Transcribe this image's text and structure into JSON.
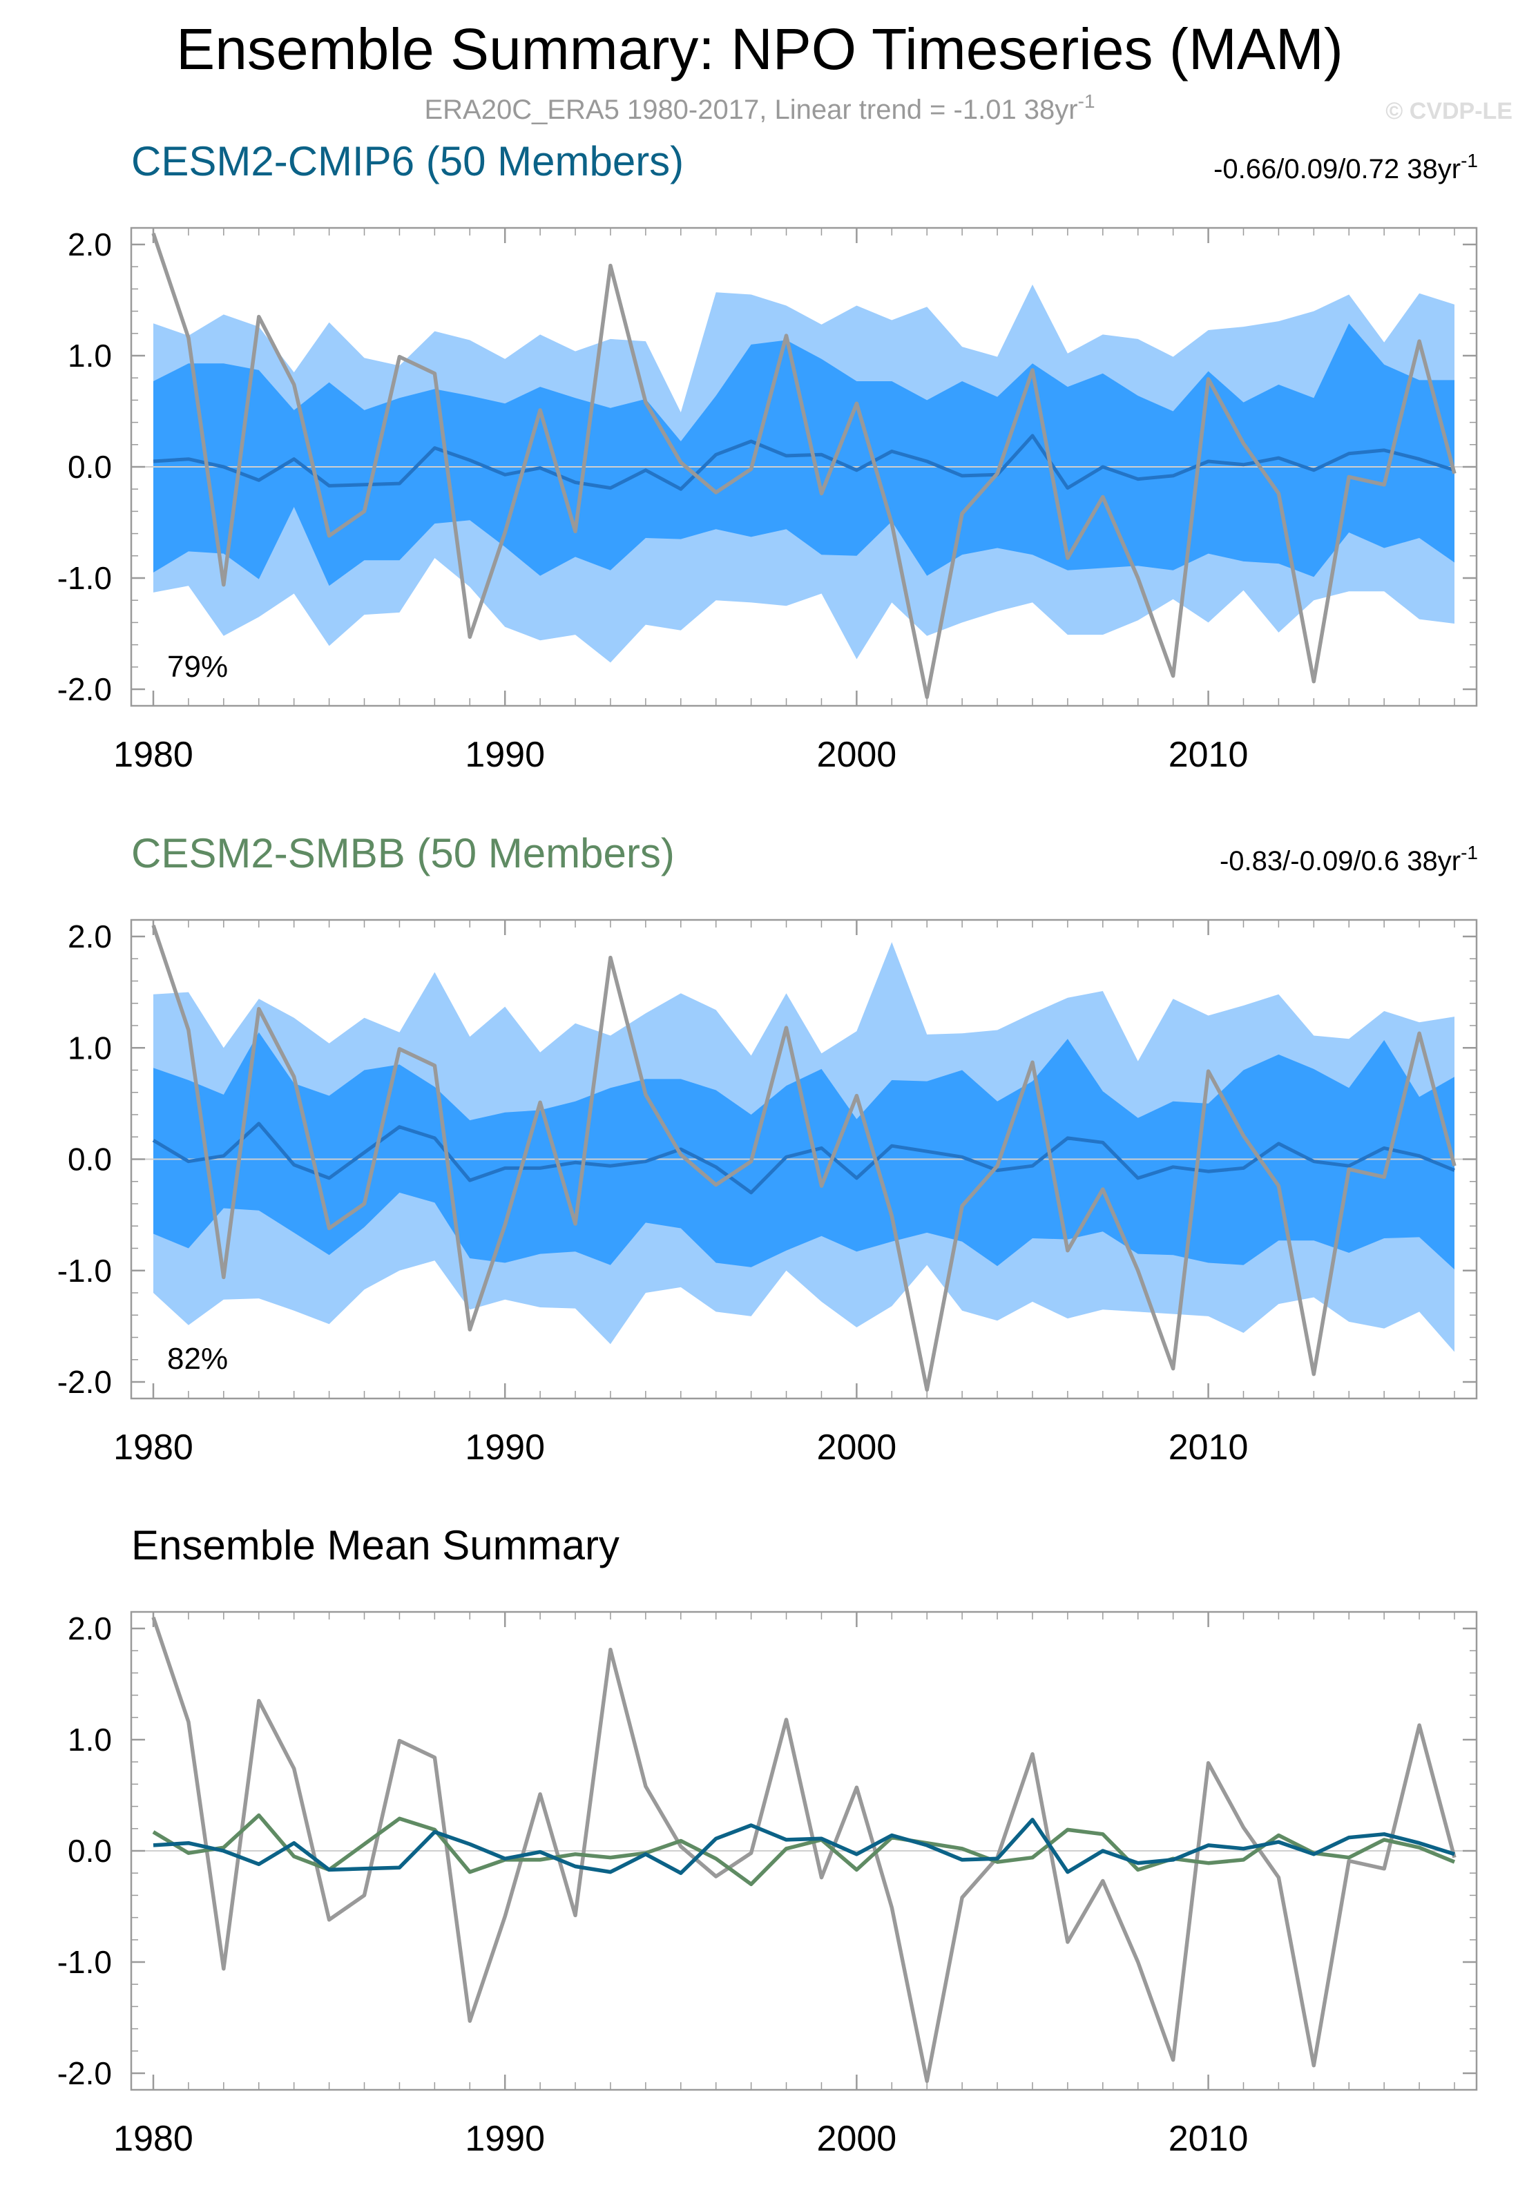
{
  "header": {
    "title": "Ensemble Summary: NPO Timeseries (MAM)",
    "subtitle": "ERA20C_ERA5 1980-2017, Linear trend = -1.01 38yr",
    "subtitle_sup": "-1",
    "watermark": "© CVDP-LE"
  },
  "colors": {
    "obs": "#999999",
    "cmip6": "#0b6287",
    "smbb": "#5f8b63",
    "band_outer": "#9dcdfd",
    "band_inner": "#379fff",
    "ens_mean_in_panel": "#2374c6"
  },
  "chart_data": [
    {
      "type": "area",
      "title": "CESM2-CMIP6 (50 Members)",
      "trend_label": "-0.66/0.09/0.72 38yr",
      "trend_sup": "-1",
      "percent_label": "79%",
      "xlim": [
        1980,
        2017
      ],
      "ylim": [
        -2.0,
        2.0
      ],
      "xticks": [
        "1980",
        "1990",
        "2000",
        "2010"
      ],
      "yticks": [
        "2.0",
        "1.0",
        "0.0",
        "-1.0",
        "-2.0"
      ],
      "x": [
        1980,
        1981,
        1982,
        1983,
        1984,
        1985,
        1986,
        1987,
        1988,
        1989,
        1990,
        1991,
        1992,
        1993,
        1994,
        1995,
        1996,
        1997,
        1998,
        1999,
        2000,
        2001,
        2002,
        2003,
        2004,
        2005,
        2006,
        2007,
        2008,
        2009,
        2010,
        2011,
        2012,
        2013,
        2014,
        2015,
        2016,
        2017
      ],
      "series": [
        {
          "name": "outer_max",
          "values": [
            1.29,
            1.18,
            1.37,
            1.26,
            0.85,
            1.3,
            0.98,
            0.91,
            1.22,
            1.14,
            0.97,
            1.19,
            1.04,
            1.15,
            1.13,
            0.49,
            1.57,
            1.55,
            1.45,
            1.28,
            1.45,
            1.32,
            1.44,
            1.08,
            0.99,
            1.64,
            1.02,
            1.19,
            1.15,
            0.99,
            1.23,
            1.26,
            1.31,
            1.4,
            1.55,
            1.12,
            1.56,
            1.46
          ]
        },
        {
          "name": "inner_max",
          "values": [
            0.77,
            0.93,
            0.93,
            0.87,
            0.51,
            0.76,
            0.51,
            0.62,
            0.7,
            0.64,
            0.57,
            0.72,
            0.62,
            0.53,
            0.61,
            0.23,
            0.64,
            1.1,
            1.14,
            0.97,
            0.77,
            0.77,
            0.6,
            0.77,
            0.63,
            0.93,
            0.72,
            0.84,
            0.64,
            0.5,
            0.86,
            0.58,
            0.74,
            0.62,
            1.29,
            0.92,
            0.78,
            0.78
          ]
        },
        {
          "name": "inner_min",
          "values": [
            -0.95,
            -0.76,
            -0.78,
            -1.01,
            -0.36,
            -1.07,
            -0.84,
            -0.84,
            -0.51,
            -0.48,
            -0.72,
            -0.98,
            -0.81,
            -0.93,
            -0.64,
            -0.65,
            -0.56,
            -0.63,
            -0.56,
            -0.79,
            -0.8,
            -0.49,
            -0.98,
            -0.79,
            -0.73,
            -0.79,
            -0.93,
            -0.91,
            -0.89,
            -0.93,
            -0.78,
            -0.85,
            -0.87,
            -0.99,
            -0.59,
            -0.73,
            -0.64,
            -0.86
          ]
        },
        {
          "name": "outer_min",
          "values": [
            -1.13,
            -1.07,
            -1.52,
            -1.35,
            -1.14,
            -1.61,
            -1.33,
            -1.31,
            -0.82,
            -1.08,
            -1.44,
            -1.56,
            -1.51,
            -1.76,
            -1.42,
            -1.47,
            -1.2,
            -1.22,
            -1.25,
            -1.14,
            -1.73,
            -1.22,
            -1.52,
            -1.4,
            -1.3,
            -1.22,
            -1.51,
            -1.51,
            -1.38,
            -1.19,
            -1.4,
            -1.11,
            -1.49,
            -1.2,
            -1.12,
            -1.12,
            -1.37,
            -1.41
          ]
        },
        {
          "name": "ensemble_mean",
          "values": [
            0.05,
            0.07,
            0.0,
            -0.12,
            0.07,
            -0.17,
            -0.16,
            -0.15,
            0.17,
            0.06,
            -0.07,
            -0.01,
            -0.14,
            -0.19,
            -0.03,
            -0.2,
            0.11,
            0.23,
            0.1,
            0.11,
            -0.03,
            0.14,
            0.05,
            -0.08,
            -0.07,
            0.28,
            -0.19,
            0.0,
            -0.11,
            -0.08,
            0.05,
            0.02,
            0.08,
            -0.03,
            0.12,
            0.15,
            0.07,
            -0.03
          ]
        },
        {
          "name": "ERA20C_ERA5",
          "values": [
            2.1,
            1.16,
            -1.06,
            1.35,
            0.74,
            -0.62,
            -0.4,
            0.99,
            0.84,
            -1.53,
            -0.59,
            0.51,
            -0.58,
            1.81,
            0.58,
            0.04,
            -0.23,
            -0.02,
            1.18,
            -0.24,
            0.57,
            -0.51,
            -2.07,
            -0.42,
            -0.06,
            0.87,
            -0.82,
            -0.27,
            -1.0,
            -1.88,
            0.79,
            0.21,
            -0.24,
            -1.93,
            -0.09,
            -0.16,
            1.13,
            -0.06
          ]
        }
      ]
    },
    {
      "type": "area",
      "title": "CESM2-SMBB (50 Members)",
      "trend_label": "-0.83/-0.09/0.6 38yr",
      "trend_sup": "-1",
      "percent_label": "82%",
      "xlim": [
        1980,
        2017
      ],
      "ylim": [
        -2.0,
        2.0
      ],
      "xticks": [
        "1980",
        "1990",
        "2000",
        "2010"
      ],
      "yticks": [
        "2.0",
        "1.0",
        "0.0",
        "-1.0",
        "-2.0"
      ],
      "x": [
        1980,
        1981,
        1982,
        1983,
        1984,
        1985,
        1986,
        1987,
        1988,
        1989,
        1990,
        1991,
        1992,
        1993,
        1994,
        1995,
        1996,
        1997,
        1998,
        1999,
        2000,
        2001,
        2002,
        2003,
        2004,
        2005,
        2006,
        2007,
        2008,
        2009,
        2010,
        2011,
        2012,
        2013,
        2014,
        2015,
        2016,
        2017
      ],
      "series": [
        {
          "name": "outer_max",
          "values": [
            1.48,
            1.5,
            1.0,
            1.44,
            1.27,
            1.04,
            1.27,
            1.14,
            1.68,
            1.1,
            1.37,
            0.96,
            1.22,
            1.11,
            1.31,
            1.49,
            1.34,
            0.93,
            1.49,
            0.95,
            1.15,
            1.95,
            1.12,
            1.13,
            1.16,
            1.31,
            1.45,
            1.51,
            0.88,
            1.44,
            1.29,
            1.38,
            1.48,
            1.11,
            1.08,
            1.33,
            1.23,
            1.28
          ]
        },
        {
          "name": "inner_max",
          "values": [
            0.82,
            0.71,
            0.58,
            1.14,
            0.68,
            0.57,
            0.8,
            0.85,
            0.65,
            0.35,
            0.42,
            0.44,
            0.52,
            0.64,
            0.72,
            0.72,
            0.62,
            0.4,
            0.66,
            0.81,
            0.36,
            0.71,
            0.7,
            0.8,
            0.52,
            0.7,
            1.08,
            0.61,
            0.37,
            0.52,
            0.5,
            0.8,
            0.94,
            0.81,
            0.64,
            1.07,
            0.56,
            0.74
          ]
        },
        {
          "name": "inner_min",
          "values": [
            -0.67,
            -0.8,
            -0.44,
            -0.46,
            -0.66,
            -0.86,
            -0.61,
            -0.3,
            -0.39,
            -0.89,
            -0.93,
            -0.85,
            -0.83,
            -0.95,
            -0.57,
            -0.62,
            -0.93,
            -0.97,
            -0.82,
            -0.69,
            -0.83,
            -0.74,
            -0.66,
            -0.74,
            -0.96,
            -0.71,
            -0.72,
            -0.65,
            -0.85,
            -0.86,
            -0.93,
            -0.95,
            -0.73,
            -0.73,
            -0.84,
            -0.71,
            -0.7,
            -0.99
          ]
        },
        {
          "name": "outer_min",
          "values": [
            -1.2,
            -1.49,
            -1.26,
            -1.25,
            -1.36,
            -1.48,
            -1.17,
            -1.0,
            -0.91,
            -1.35,
            -1.26,
            -1.33,
            -1.34,
            -1.66,
            -1.2,
            -1.15,
            -1.37,
            -1.41,
            -1.0,
            -1.28,
            -1.51,
            -1.32,
            -0.95,
            -1.36,
            -1.45,
            -1.28,
            -1.43,
            -1.35,
            -1.37,
            -1.39,
            -1.41,
            -1.56,
            -1.3,
            -1.24,
            -1.46,
            -1.52,
            -1.37,
            -1.73
          ]
        },
        {
          "name": "ensemble_mean",
          "values": [
            0.17,
            -0.02,
            0.03,
            0.32,
            -0.05,
            -0.17,
            0.06,
            0.29,
            0.19,
            -0.19,
            -0.08,
            -0.08,
            -0.03,
            -0.06,
            -0.02,
            0.09,
            -0.07,
            -0.3,
            0.02,
            0.1,
            -0.17,
            0.12,
            0.07,
            0.02,
            -0.1,
            -0.06,
            0.19,
            0.15,
            -0.17,
            -0.07,
            -0.11,
            -0.08,
            0.14,
            -0.02,
            -0.06,
            0.1,
            0.03,
            -0.1
          ]
        },
        {
          "name": "ERA20C_ERA5",
          "values": [
            2.1,
            1.16,
            -1.06,
            1.35,
            0.74,
            -0.62,
            -0.4,
            0.99,
            0.84,
            -1.53,
            -0.59,
            0.51,
            -0.58,
            1.81,
            0.58,
            0.04,
            -0.23,
            -0.02,
            1.18,
            -0.24,
            0.57,
            -0.51,
            -2.07,
            -0.42,
            -0.06,
            0.87,
            -0.82,
            -0.27,
            -1.0,
            -1.88,
            0.79,
            0.21,
            -0.24,
            -1.93,
            -0.09,
            -0.16,
            1.13,
            -0.06
          ]
        }
      ]
    },
    {
      "type": "line",
      "title": "Ensemble Mean Summary",
      "xlim": [
        1980,
        2017
      ],
      "ylim": [
        -2.0,
        2.0
      ],
      "xticks": [
        "1980",
        "1990",
        "2000",
        "2010"
      ],
      "yticks": [
        "2.0",
        "1.0",
        "0.0",
        "-1.0",
        "-2.0"
      ],
      "x": [
        1980,
        1981,
        1982,
        1983,
        1984,
        1985,
        1986,
        1987,
        1988,
        1989,
        1990,
        1991,
        1992,
        1993,
        1994,
        1995,
        1996,
        1997,
        1998,
        1999,
        2000,
        2001,
        2002,
        2003,
        2004,
        2005,
        2006,
        2007,
        2008,
        2009,
        2010,
        2011,
        2012,
        2013,
        2014,
        2015,
        2016,
        2017
      ],
      "series": [
        {
          "name": "ERA20C_ERA5",
          "values": [
            2.1,
            1.16,
            -1.06,
            1.35,
            0.74,
            -0.62,
            -0.4,
            0.99,
            0.84,
            -1.53,
            -0.59,
            0.51,
            -0.58,
            1.81,
            0.58,
            0.04,
            -0.23,
            -0.02,
            1.18,
            -0.24,
            0.57,
            -0.51,
            -2.07,
            -0.42,
            -0.06,
            0.87,
            -0.82,
            -0.27,
            -1.0,
            -1.88,
            0.79,
            0.21,
            -0.24,
            -1.93,
            -0.09,
            -0.16,
            1.13,
            -0.06
          ]
        },
        {
          "name": "CESM2-SMBB",
          "values": [
            0.17,
            -0.02,
            0.03,
            0.32,
            -0.05,
            -0.17,
            0.06,
            0.29,
            0.19,
            -0.19,
            -0.08,
            -0.08,
            -0.03,
            -0.06,
            -0.02,
            0.09,
            -0.07,
            -0.3,
            0.02,
            0.1,
            -0.17,
            0.12,
            0.07,
            0.02,
            -0.1,
            -0.06,
            0.19,
            0.15,
            -0.17,
            -0.07,
            -0.11,
            -0.08,
            0.14,
            -0.02,
            -0.06,
            0.1,
            0.03,
            -0.1
          ]
        },
        {
          "name": "CESM2-CMIP6",
          "values": [
            0.05,
            0.07,
            0.0,
            -0.12,
            0.07,
            -0.17,
            -0.16,
            -0.15,
            0.17,
            0.06,
            -0.07,
            -0.01,
            -0.14,
            -0.19,
            -0.03,
            -0.2,
            0.11,
            0.23,
            0.1,
            0.11,
            -0.03,
            0.14,
            0.05,
            -0.08,
            -0.07,
            0.28,
            -0.19,
            0.0,
            -0.11,
            -0.08,
            0.05,
            0.02,
            0.08,
            -0.03,
            0.12,
            0.15,
            0.07,
            -0.03
          ]
        }
      ]
    }
  ]
}
